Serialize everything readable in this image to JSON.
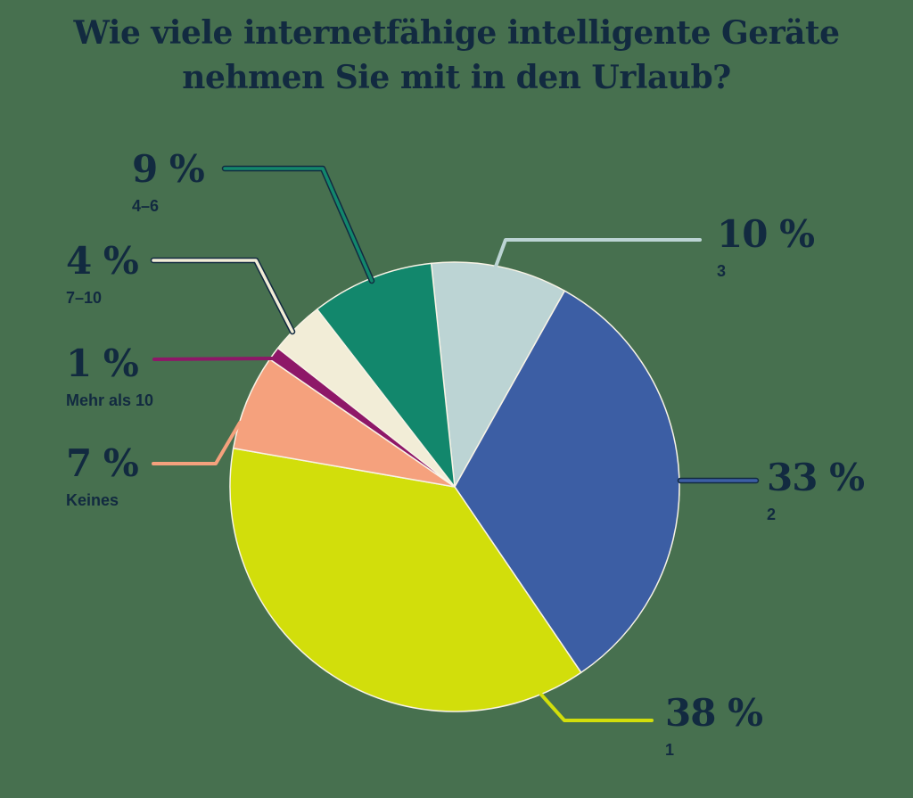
{
  "title": {
    "line1": "Wie viele internetfähige intelligente Geräte",
    "line2": "nehmen Sie mit in den Urlaub?"
  },
  "colors": {
    "background": "#47704F",
    "text_navy": "#122A40",
    "slice_stroke": "#F8F3E6"
  },
  "chart_data": {
    "type": "pie",
    "title": "Wie viele internetfähige intelligente Geräte nehmen Sie mit in den Urlaub?",
    "start_angle_deg": -6,
    "legend_position": "callout-labels",
    "slices": [
      {
        "label": "3",
        "value": 10,
        "color": "#BCD4D4"
      },
      {
        "label": "2",
        "value": 33,
        "color": "#3C5EA4"
      },
      {
        "label": "1",
        "value": 38,
        "color": "#D2DE0B"
      },
      {
        "label": "Keines",
        "value": 7,
        "color": "#F5A17D"
      },
      {
        "label": "Mehr als 10",
        "value": 1,
        "color": "#8E1768"
      },
      {
        "label": "7–10",
        "value": 4,
        "color": "#F2EDD7"
      },
      {
        "label": "4–6",
        "value": 9,
        "color": "#12876C"
      }
    ]
  },
  "labels": [
    {
      "pct": "9 %",
      "sub": "4–6"
    },
    {
      "pct": "4 %",
      "sub": "7–10"
    },
    {
      "pct": "1 %",
      "sub": "Mehr als 10"
    },
    {
      "pct": "7 %",
      "sub": "Keines"
    },
    {
      "pct": "10 %",
      "sub": "3"
    },
    {
      "pct": "33 %",
      "sub": "2"
    },
    {
      "pct": "38 %",
      "sub": "1"
    }
  ]
}
